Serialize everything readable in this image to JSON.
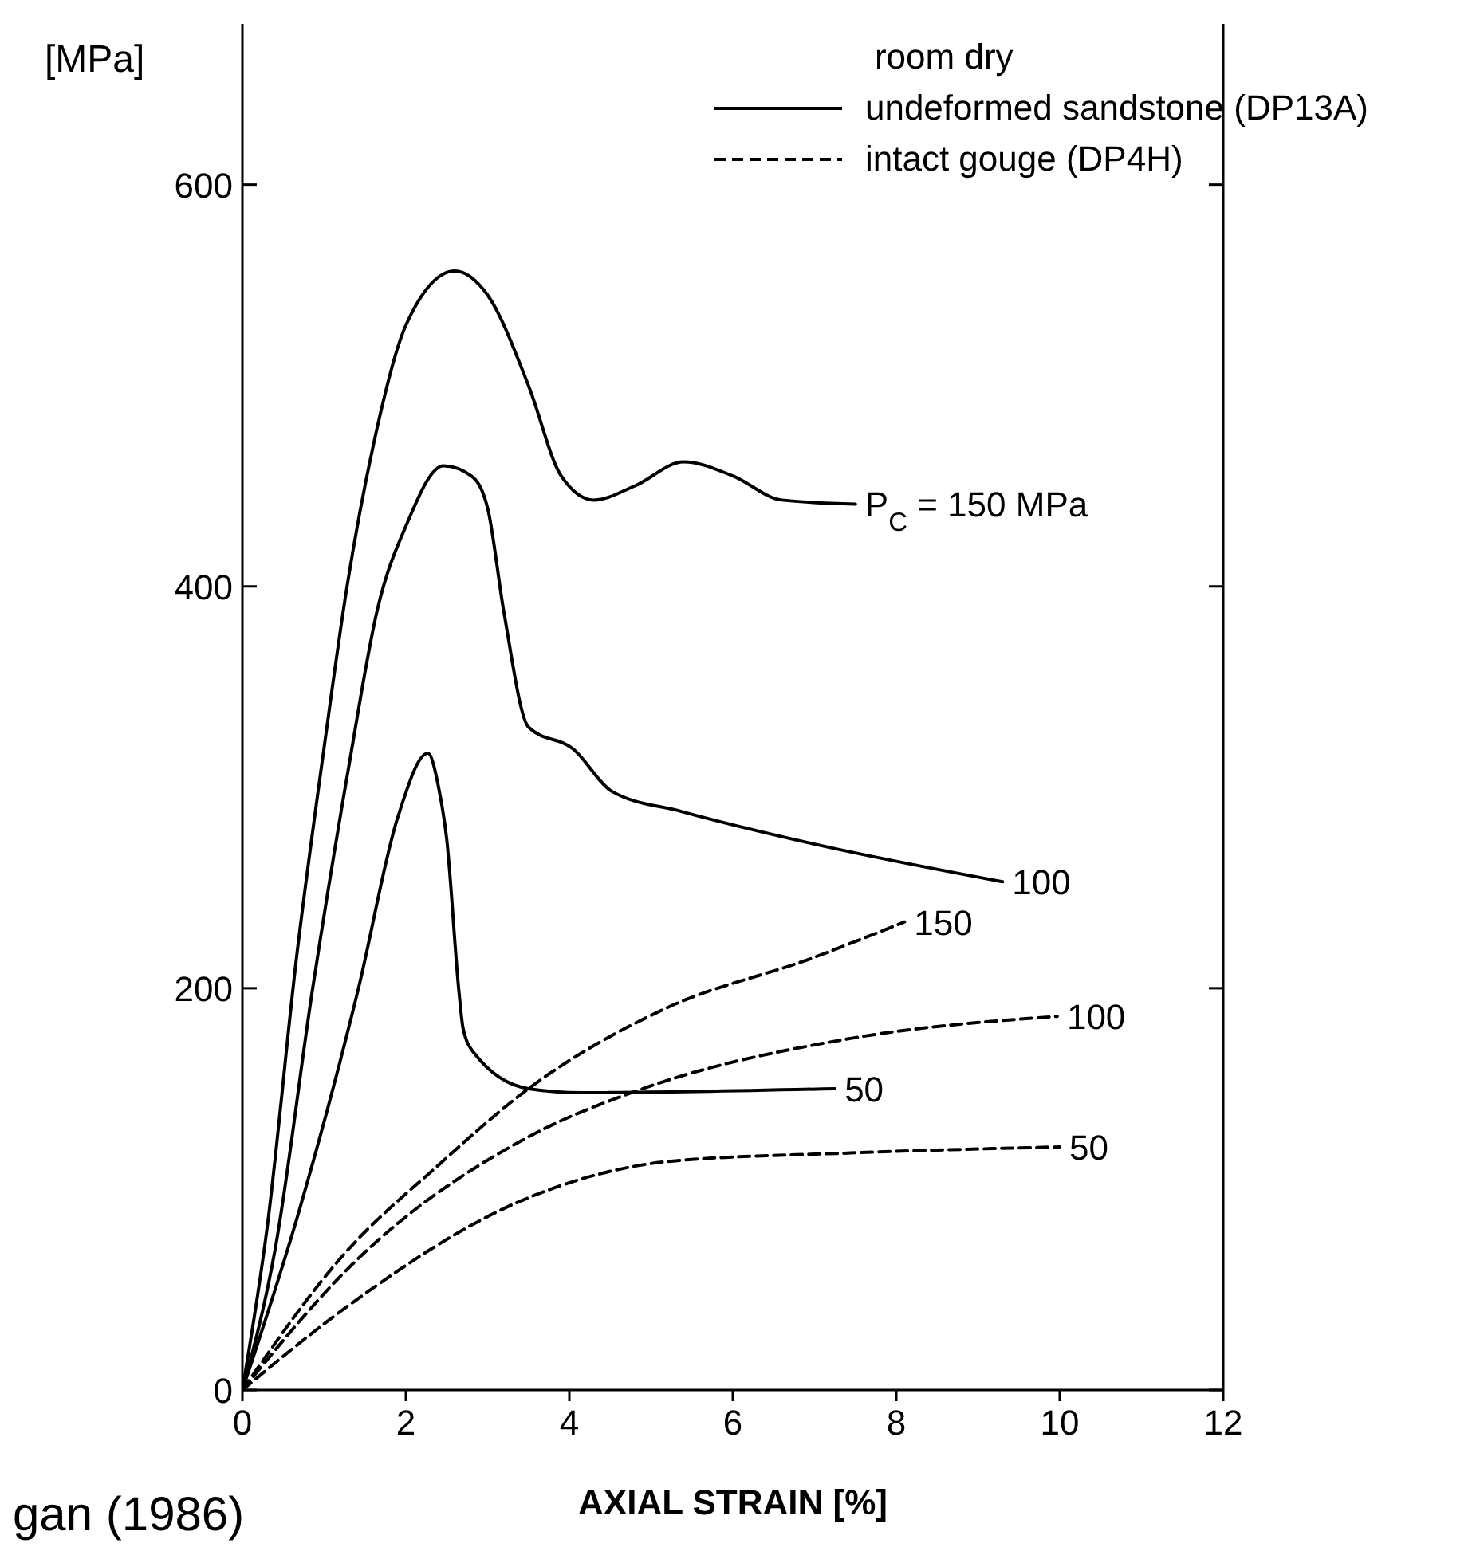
{
  "chart_data": {
    "type": "line",
    "xlabel": "AXIAL STRAIN   [%]",
    "ylabel": "[MPa]",
    "legend_title": "room dry",
    "marker": "none",
    "xlim": [
      0,
      12
    ],
    "xticks": [
      0,
      2,
      4,
      6,
      8,
      10,
      12
    ],
    "ylim": [
      0,
      680
    ],
    "yticks": [
      0,
      200,
      400,
      600
    ],
    "annotations": [
      "undeformed sandstone (DP13A)",
      "intact gouge (DP4H)",
      "gan (1986)"
    ],
    "series": [
      {
        "name": "P$_{C}$ = 150 MPa",
        "color": "#000000",
        "line_style": "solid",
        "x": [
          0,
          0.3,
          0.67,
          1.0,
          1.28,
          1.6,
          2.0,
          2.6,
          3.0,
          3.5,
          3.9,
          4.3,
          4.8,
          5.4,
          6.0,
          6.6,
          7.5
        ],
        "values": [
          0,
          80,
          218,
          320,
          400,
          470,
          530,
          557,
          545,
          500,
          455,
          443,
          450,
          462,
          455,
          443,
          441
        ]
      },
      {
        "name": "100",
        "color": "#000000",
        "line_style": "solid",
        "x": [
          0,
          0.4,
          0.86,
          1.3,
          1.66,
          2.0,
          2.46,
          2.8,
          3.0,
          3.2,
          3.5,
          4.05,
          4.52,
          5.37,
          6.97,
          9.3
        ],
        "values": [
          0,
          70,
          200,
          310,
          390,
          430,
          460,
          455,
          439,
          387,
          330,
          319,
          298,
          288,
          272,
          253
        ]
      },
      {
        "name": "50",
        "color": "#000000",
        "line_style": "solid",
        "x": [
          0,
          0.7,
          1.42,
          1.9,
          2.27,
          2.4,
          2.5,
          2.65,
          2.7,
          2.83,
          3.5,
          4.15,
          7.25
        ],
        "values": [
          0,
          90,
          200,
          285,
          317,
          300,
          274,
          198,
          180,
          168,
          150,
          148,
          150
        ]
      },
      {
        "name": "150",
        "color": "#000000",
        "line_style": "dashed",
        "x": [
          0,
          1.23,
          2.4,
          3.5,
          5.18,
          6.97,
          8.1
        ],
        "values": [
          0,
          67,
          112,
          150,
          190,
          215,
          233
        ]
      },
      {
        "name": "100",
        "color": "#000000",
        "line_style": "dashed",
        "x": [
          0,
          1.33,
          3.5,
          4.9,
          7.44,
          9.97
        ],
        "values": [
          0,
          62,
          126,
          150,
          175,
          186
        ]
      },
      {
        "name": "50",
        "color": "#000000",
        "line_style": "dashed",
        "x": [
          0,
          1.33,
          3.4,
          5.27,
          7.44,
          10
        ],
        "values": [
          0,
          43,
          94,
          114,
          118,
          121
        ]
      }
    ]
  }
}
